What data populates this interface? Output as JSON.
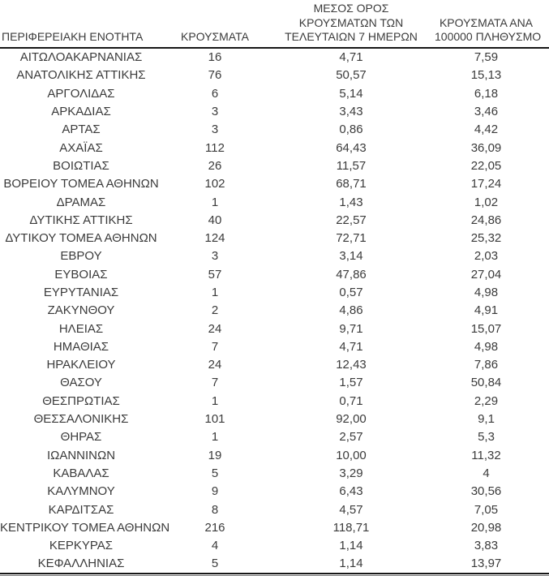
{
  "colors": {
    "background": "#ffffff",
    "text": "#3b3b3b",
    "rule_dark": "#161616",
    "rule_light": "#7f7f7f"
  },
  "table": {
    "columns": [
      {
        "key": "region",
        "label": "ΠΕΡΙΦΕΡΕΙΑΚΗ ΕΝΟΤΗΤΑ"
      },
      {
        "key": "cases",
        "label": "ΚΡΟΥΣΜΑΤΑ"
      },
      {
        "key": "avg7",
        "label": "ΜΕΣΟΣ ΟΡΟΣ\nΚΡΟΥΣΜΑΤΩΝ ΤΩΝ\nΤΕΛΕΥΤΑΙΩΝ 7 ΗΜΕΡΩΝ"
      },
      {
        "key": "per100k",
        "label": "ΚΡΟΥΣΜΑΤΑ ΑΝΑ\n100000 ΠΛΗΘΥΣΜΟ"
      }
    ],
    "rows": [
      {
        "region": "ΑΙΤΩΛΟΑΚΑΡΝΑΝΙΑΣ",
        "cases": "16",
        "avg7": "4,71",
        "per100k": "7,59"
      },
      {
        "region": "ΑΝΑΤΟΛΙΚΗΣ ΑΤΤΙΚΗΣ",
        "cases": "76",
        "avg7": "50,57",
        "per100k": "15,13"
      },
      {
        "region": "ΑΡΓΟΛΙΔΑΣ",
        "cases": "6",
        "avg7": "5,14",
        "per100k": "6,18"
      },
      {
        "region": "ΑΡΚΑΔΙΑΣ",
        "cases": "3",
        "avg7": "3,43",
        "per100k": "3,46"
      },
      {
        "region": "ΑΡΤΑΣ",
        "cases": "3",
        "avg7": "0,86",
        "per100k": "4,42"
      },
      {
        "region": "ΑΧΑΪΑΣ",
        "cases": "112",
        "avg7": "64,43",
        "per100k": "36,09"
      },
      {
        "region": "ΒΟΙΩΤΙΑΣ",
        "cases": "26",
        "avg7": "11,57",
        "per100k": "22,05"
      },
      {
        "region": "ΒΟΡΕΙΟΥ ΤΟΜΕΑ ΑΘΗΝΩΝ",
        "cases": "102",
        "avg7": "68,71",
        "per100k": "17,24"
      },
      {
        "region": "ΔΡΑΜΑΣ",
        "cases": "1",
        "avg7": "1,43",
        "per100k": "1,02"
      },
      {
        "region": "ΔΥΤΙΚΗΣ ΑΤΤΙΚΗΣ",
        "cases": "40",
        "avg7": "22,57",
        "per100k": "24,86"
      },
      {
        "region": "ΔΥΤΙΚΟΥ ΤΟΜΕΑ ΑΘΗΝΩΝ",
        "cases": "124",
        "avg7": "72,71",
        "per100k": "25,32"
      },
      {
        "region": "ΕΒΡΟΥ",
        "cases": "3",
        "avg7": "3,14",
        "per100k": "2,03"
      },
      {
        "region": "ΕΥΒΟΙΑΣ",
        "cases": "57",
        "avg7": "47,86",
        "per100k": "27,04"
      },
      {
        "region": "ΕΥΡΥΤΑΝΙΑΣ",
        "cases": "1",
        "avg7": "0,57",
        "per100k": "4,98"
      },
      {
        "region": "ΖΑΚΥΝΘΟΥ",
        "cases": "2",
        "avg7": "4,86",
        "per100k": "4,91"
      },
      {
        "region": "ΗΛΕΙΑΣ",
        "cases": "24",
        "avg7": "9,71",
        "per100k": "15,07"
      },
      {
        "region": "ΗΜΑΘΙΑΣ",
        "cases": "7",
        "avg7": "4,71",
        "per100k": "4,98"
      },
      {
        "region": "ΗΡΑΚΛΕΙΟΥ",
        "cases": "24",
        "avg7": "12,43",
        "per100k": "7,86"
      },
      {
        "region": "ΘΑΣΟΥ",
        "cases": "7",
        "avg7": "1,57",
        "per100k": "50,84"
      },
      {
        "region": "ΘΕΣΠΡΩΤΙΑΣ",
        "cases": "1",
        "avg7": "0,71",
        "per100k": "2,29"
      },
      {
        "region": "ΘΕΣΣΑΛΟΝΙΚΗΣ",
        "cases": "101",
        "avg7": "92,00",
        "per100k": "9,1"
      },
      {
        "region": "ΘΗΡΑΣ",
        "cases": "1",
        "avg7": "2,57",
        "per100k": "5,3"
      },
      {
        "region": "ΙΩΑΝΝΙΝΩΝ",
        "cases": "19",
        "avg7": "10,00",
        "per100k": "11,32"
      },
      {
        "region": "ΚΑΒΑΛΑΣ",
        "cases": "5",
        "avg7": "3,29",
        "per100k": "4"
      },
      {
        "region": "ΚΑΛΥΜΝΟΥ",
        "cases": "9",
        "avg7": "6,43",
        "per100k": "30,56"
      },
      {
        "region": "ΚΑΡΔΙΤΣΑΣ",
        "cases": "8",
        "avg7": "4,57",
        "per100k": "7,05"
      },
      {
        "region": "ΚΕΝΤΡΙΚΟΥ ΤΟΜΕΑ ΑΘΗΝΩΝ",
        "cases": "216",
        "avg7": "118,71",
        "per100k": "20,98"
      },
      {
        "region": "ΚΕΡΚΥΡΑΣ",
        "cases": "4",
        "avg7": "1,14",
        "per100k": "3,83"
      },
      {
        "region": "ΚΕΦΑΛΛΗΝΙΑΣ",
        "cases": "5",
        "avg7": "1,14",
        "per100k": "13,97"
      }
    ]
  }
}
